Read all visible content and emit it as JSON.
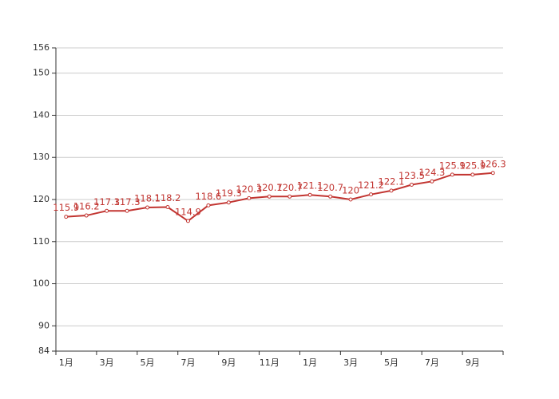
{
  "chart_data": {
    "type": "line",
    "categories": [
      "1月",
      null,
      "3月",
      null,
      "5月",
      null,
      "7月",
      null,
      "9月",
      null,
      "11月",
      null,
      "1月",
      null,
      "3月",
      null,
      "5月",
      null,
      "7月",
      null,
      "9月",
      null
    ],
    "series": [
      {
        "color": "#c23531",
        "values": [
          115.9,
          116.2,
          117.3,
          117.3,
          118.1,
          118.2,
          114.9,
          118.6,
          119.3,
          120.3,
          120.7,
          120.7,
          121.1,
          120.7,
          120,
          121.2,
          122.1,
          123.5,
          124.3,
          125.9,
          125.9,
          126.3
        ]
      }
    ],
    "ylim": [
      84,
      156
    ],
    "yticks": [
      84,
      90,
      100,
      110,
      120,
      130,
      140,
      150,
      156
    ],
    "grid": true
  }
}
